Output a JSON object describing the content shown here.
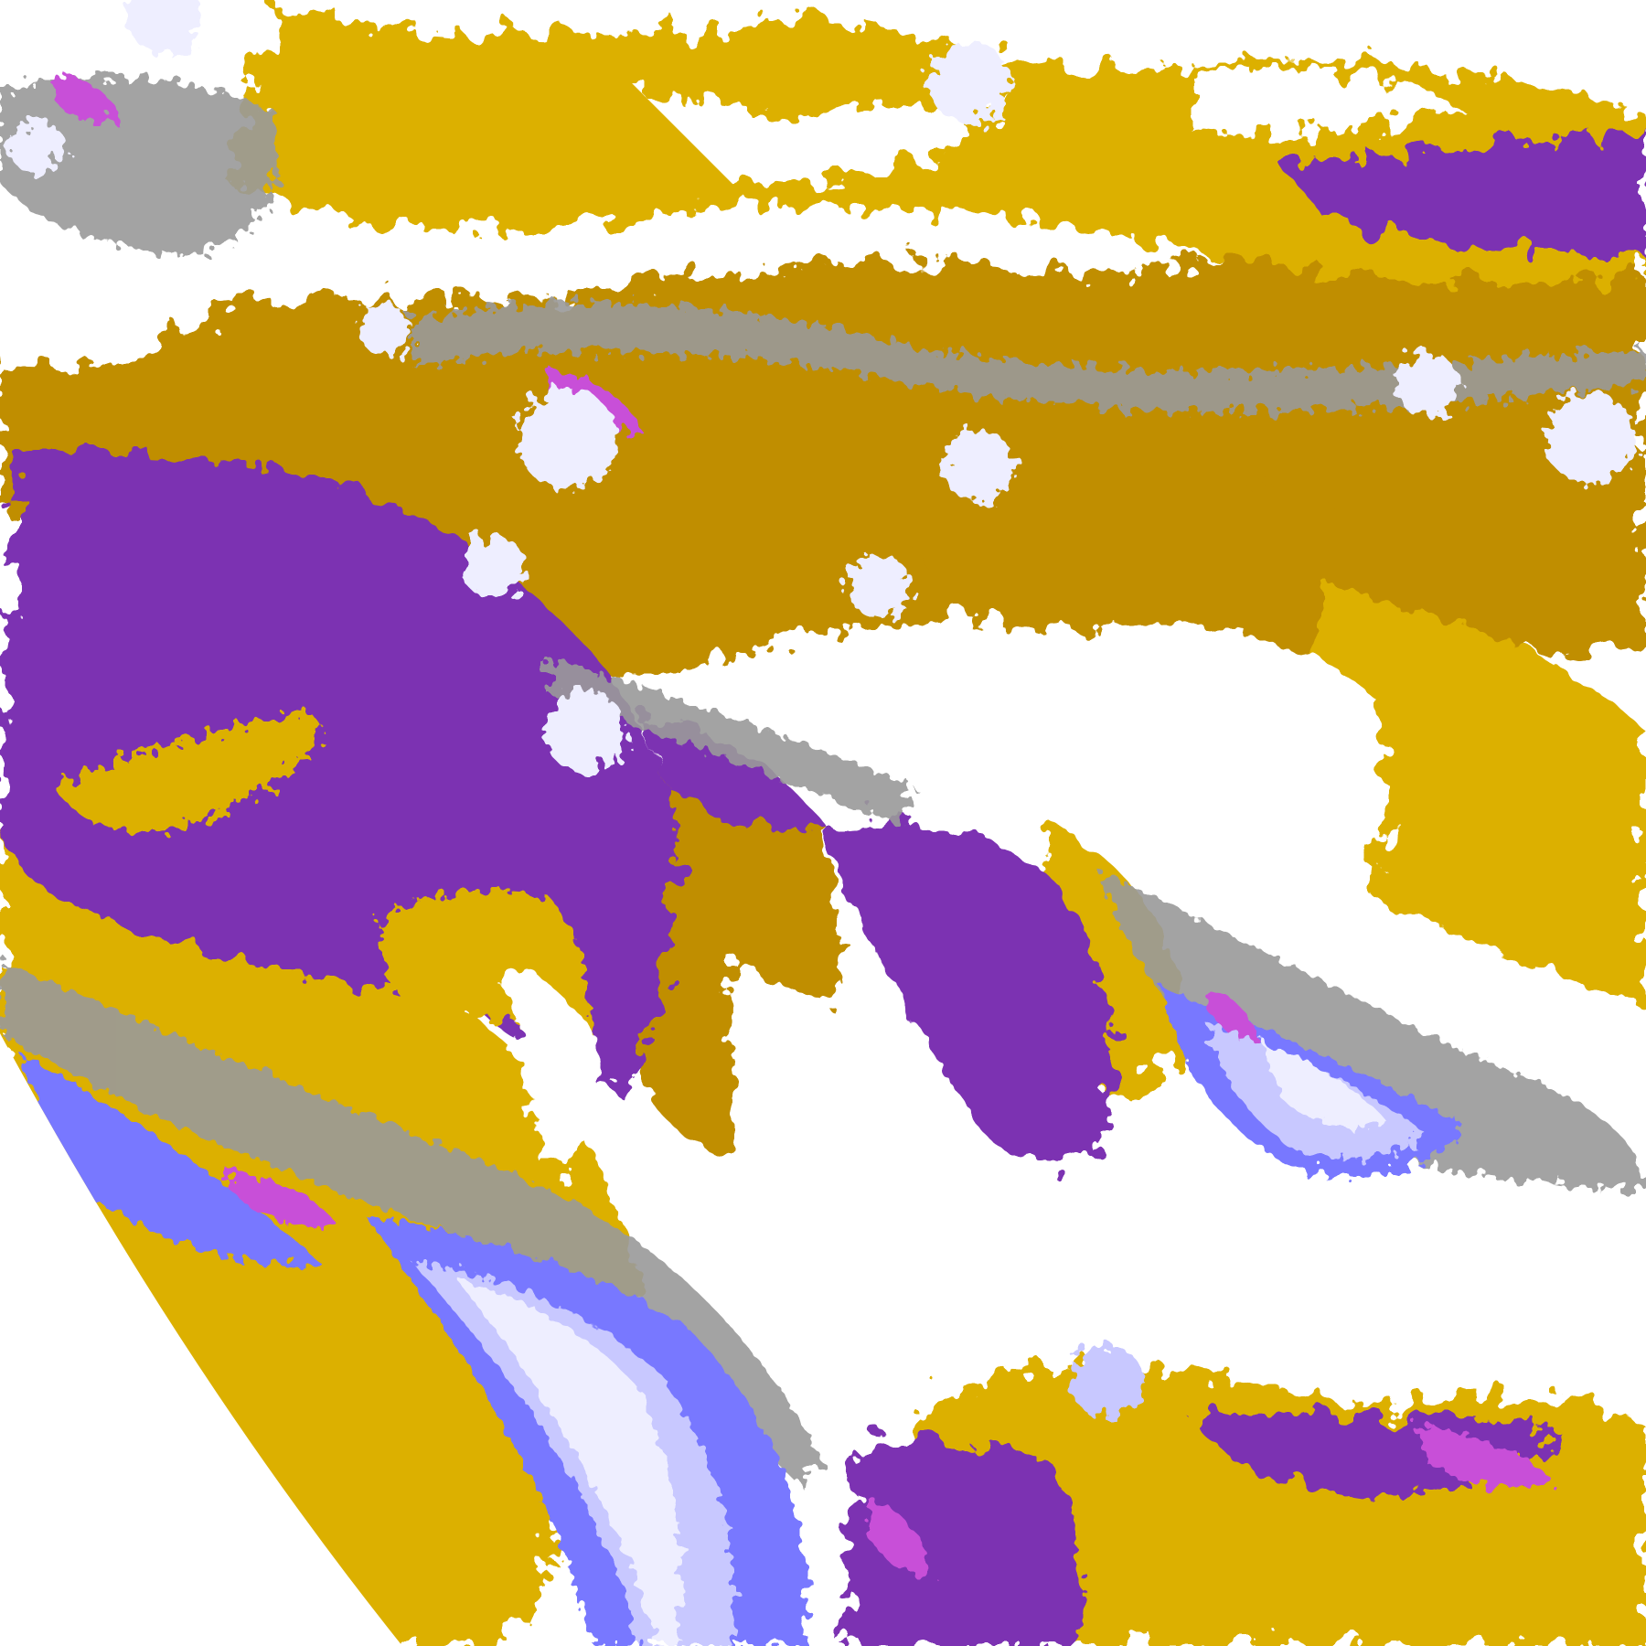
{
  "image": {
    "kind": "satellite cloud-classification imagery",
    "palette": {
      "clear": "#ffffff",
      "gold_light": "#dcb000",
      "gold_dark": "#c08e00",
      "purple": "#7b31b2",
      "magenta": "#c850d8",
      "lavender_light": "#eeeeff",
      "lavender": "#c8c8ff",
      "blue": "#7878ff",
      "gray": "#9a9a9a",
      "space": "#ffffff"
    }
  }
}
